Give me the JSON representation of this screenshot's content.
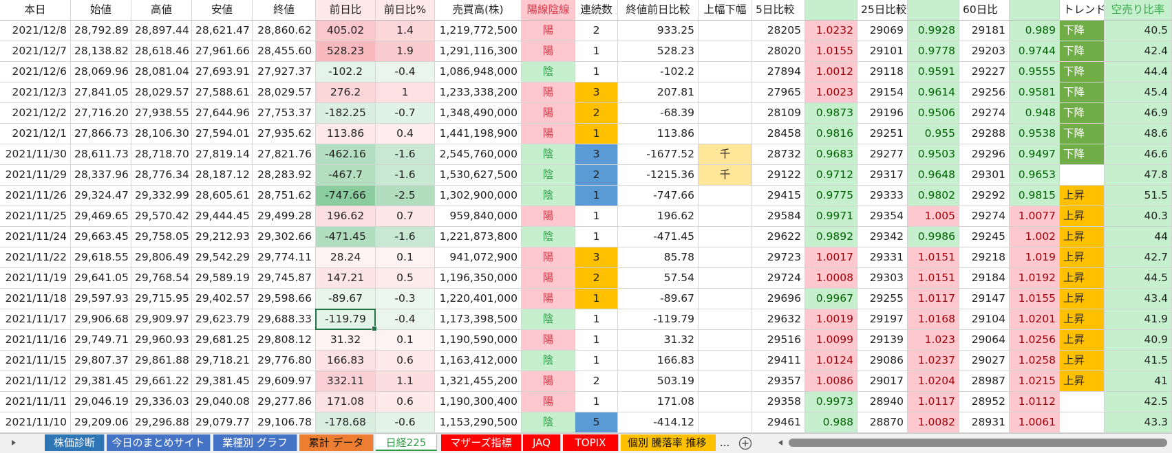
{
  "table": {
    "headers": [
      "本日",
      "始値",
      "高値",
      "安値",
      "終値",
      "前日比",
      "前日比%",
      "売買高(株)",
      "陽線陰線",
      "連続数",
      "終値前日比較",
      "上幅下幅",
      "5日比較",
      null,
      "25日比較",
      null,
      "60日比",
      null,
      "トレンド",
      "空売り比率"
    ],
    "rows": [
      [
        "2021/12/8",
        "28,792.89",
        "28,897.44",
        "28,621.47",
        "28,860.62",
        "405.02",
        "1.4",
        "1,219,772,500",
        "陽",
        "2",
        "933.25",
        null,
        "28205",
        "1.0232",
        "29069",
        "0.9928",
        "29181",
        "0.989",
        "下降",
        "40.5"
      ],
      [
        "2021/12/7",
        "28,138.82",
        "28,618.46",
        "27,961.66",
        "28,455.60",
        "528.23",
        "1.9",
        "1,291,116,300",
        "陽",
        "1",
        "528.23",
        null,
        "28020",
        "1.0155",
        "29101",
        "0.9778",
        "29203",
        "0.9744",
        "下降",
        "42.4"
      ],
      [
        "2021/12/6",
        "28,069.96",
        "28,081.04",
        "27,693.91",
        "27,927.37",
        "-102.2",
        "-0.4",
        "1,086,948,000",
        "陰",
        "1",
        "-102.2",
        null,
        "27894",
        "1.0012",
        "29118",
        "0.9591",
        "29227",
        "0.9555",
        "下降",
        "44.4"
      ],
      [
        "2021/12/3",
        "27,841.05",
        "28,029.57",
        "27,588.61",
        "28,029.57",
        "276.2",
        "1",
        "1,233,338,200",
        "陽",
        "3",
        "207.81",
        null,
        "27965",
        "1.0023",
        "29154",
        "0.9614",
        "29256",
        "0.9581",
        "下降",
        "45.4"
      ],
      [
        "2021/12/2",
        "27,716.20",
        "27,938.55",
        "27,644.96",
        "27,753.37",
        "-182.25",
        "-0.7",
        "1,348,490,000",
        "陽",
        "2",
        "-68.39",
        null,
        "28109",
        "0.9873",
        "29196",
        "0.9506",
        "29274",
        "0.948",
        "下降",
        "46.9"
      ],
      [
        "2021/12/1",
        "27,866.73",
        "28,106.30",
        "27,594.01",
        "27,935.62",
        "113.86",
        "0.4",
        "1,441,198,900",
        "陽",
        "1",
        "113.86",
        null,
        "28458",
        "0.9816",
        "29251",
        "0.955",
        "29288",
        "0.9538",
        "下降",
        "48.6"
      ],
      [
        "2021/11/30",
        "28,611.73",
        "28,718.70",
        "27,819.14",
        "27,821.76",
        "-462.16",
        "-1.6",
        "2,545,760,000",
        "陰",
        "3",
        "-1677.52",
        "千",
        "28732",
        "0.9683",
        "29277",
        "0.9503",
        "29296",
        "0.9497",
        "下降",
        "46.6"
      ],
      [
        "2021/11/29",
        "28,337.96",
        "28,776.34",
        "28,187.12",
        "28,283.92",
        "-467.7",
        "-1.6",
        "1,530,627,500",
        "陰",
        "2",
        "-1215.36",
        "千",
        "29122",
        "0.9712",
        "29317",
        "0.9648",
        "29301",
        "0.9653",
        null,
        "47.8"
      ],
      [
        "2021/11/26",
        "29,324.47",
        "29,332.99",
        "28,605.61",
        "28,751.62",
        "-747.66",
        "-2.5",
        "1,302,900,000",
        "陰",
        "1",
        "-747.66",
        null,
        "29415",
        "0.9775",
        "29333",
        "0.9802",
        "29292",
        "0.9815",
        "上昇",
        "51.5"
      ],
      [
        "2021/11/25",
        "29,469.65",
        "29,570.42",
        "29,444.45",
        "29,499.28",
        "196.62",
        "0.7",
        "959,840,000",
        "陽",
        "1",
        "196.62",
        null,
        "29584",
        "0.9971",
        "29354",
        "1.005",
        "29274",
        "1.0077",
        "上昇",
        "40.3"
      ],
      [
        "2021/11/24",
        "29,663.45",
        "29,758.05",
        "29,212.93",
        "29,302.66",
        "-471.45",
        "-1.6",
        "1,221,873,800",
        "陰",
        "1",
        "-471.45",
        null,
        "29622",
        "0.9892",
        "29342",
        "0.9986",
        "29245",
        "1.002",
        "上昇",
        "44"
      ],
      [
        "2021/11/22",
        "29,618.55",
        "29,806.49",
        "29,542.29",
        "29,774.11",
        "28.24",
        "0.1",
        "941,072,900",
        "陽",
        "3",
        "85.78",
        null,
        "29723",
        "1.0017",
        "29331",
        "1.0151",
        "29218",
        "1.019",
        "上昇",
        "42.7"
      ],
      [
        "2021/11/19",
        "29,641.05",
        "29,768.54",
        "29,589.19",
        "29,745.87",
        "147.21",
        "0.5",
        "1,196,350,000",
        "陽",
        "2",
        "57.54",
        null,
        "29724",
        "1.0008",
        "29303",
        "1.0151",
        "29184",
        "1.0192",
        "上昇",
        "44.5"
      ],
      [
        "2021/11/18",
        "29,597.93",
        "29,715.95",
        "29,402.57",
        "29,598.66",
        "-89.67",
        "-0.3",
        "1,220,401,000",
        "陽",
        "1",
        "-89.67",
        null,
        "29696",
        "0.9967",
        "29255",
        "1.0117",
        "29147",
        "1.0155",
        "上昇",
        "43.4"
      ],
      [
        "2021/11/17",
        "29,906.68",
        "29,909.97",
        "29,623.79",
        "29,688.33",
        "-119.79",
        "-0.4",
        "1,173,398,500",
        "陰",
        "1",
        "-119.79",
        null,
        "29632",
        "1.0019",
        "29197",
        "1.0168",
        "29104",
        "1.0201",
        "上昇",
        "41.9"
      ],
      [
        "2021/11/16",
        "29,749.71",
        "29,960.93",
        "29,681.25",
        "29,808.12",
        "31.32",
        "0.1",
        "1,190,590,000",
        "陽",
        "1",
        "31.32",
        null,
        "29516",
        "1.0099",
        "29139",
        "1.023",
        "29064",
        "1.0256",
        "上昇",
        "40.9"
      ],
      [
        "2021/11/15",
        "29,807.37",
        "29,861.88",
        "29,718.21",
        "29,776.80",
        "166.83",
        "0.6",
        "1,163,412,000",
        "陰",
        "1",
        "166.83",
        null,
        "29411",
        "1.0124",
        "29086",
        "1.0237",
        "29027",
        "1.0258",
        "上昇",
        "41.5"
      ],
      [
        "2021/11/12",
        "29,381.45",
        "29,661.22",
        "29,381.45",
        "29,609.97",
        "332.11",
        "1.1",
        "1,321,455,200",
        "陽",
        "2",
        "503.19",
        null,
        "29357",
        "1.0086",
        "29017",
        "1.0204",
        "28987",
        "1.0215",
        "上昇",
        "41"
      ],
      [
        "2021/11/11",
        "29,046.19",
        "29,336.03",
        "29,040.08",
        "29,277.86",
        "171.08",
        "0.6",
        "1,190,300,400",
        "陽",
        "1",
        "171.08",
        null,
        "29358",
        "0.9973",
        "28940",
        "1.0117",
        "28952",
        "1.0112",
        null,
        "42.5"
      ],
      [
        "2021/11/10",
        "29,209.06",
        "29,296.88",
        "29,079.77",
        "29,106.78",
        "-178.68",
        "-0.6",
        "1,153,290,500",
        "陰",
        "5",
        "-414.12",
        null,
        "29461",
        "0.988",
        "28870",
        "1.0082",
        "28931",
        "1.0061",
        null,
        "43.3"
      ]
    ]
  },
  "sheet_tabs": [
    "株価診断",
    "今日のまとめサイト",
    "業種別 グラフ",
    "累計 データ",
    "日経225",
    "マザーズ指標",
    "JAQ",
    "TOPIX",
    "個別 騰落率 推移"
  ],
  "tab_overflow": "..."
}
